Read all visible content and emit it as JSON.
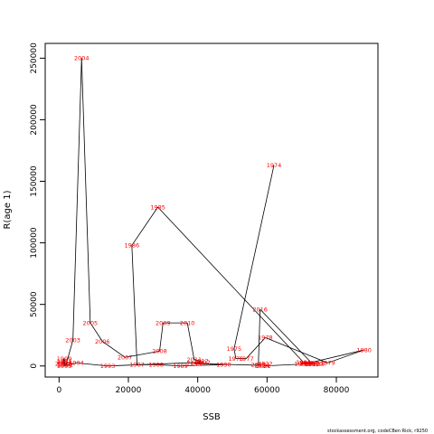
{
  "chart_data": {
    "type": "line",
    "xlabel": "SSB",
    "ylabel": "R(age 1)",
    "xlim": [
      -4000,
      92000
    ],
    "ylim": [
      -9000,
      262000
    ],
    "x_ticks": [
      0,
      20000,
      40000,
      60000,
      80000
    ],
    "y_ticks": [
      0,
      50000,
      100000,
      150000,
      200000,
      250000
    ],
    "points": [
      {
        "year": "1974",
        "x": 62000,
        "y": 163000
      },
      {
        "year": "1975",
        "x": 50500,
        "y": 14000
      },
      {
        "year": "1976",
        "x": 51000,
        "y": 6000
      },
      {
        "year": "1977",
        "x": 54000,
        "y": 6000
      },
      {
        "year": "1978",
        "x": 59500,
        "y": 23000
      },
      {
        "year": "1979",
        "x": 77500,
        "y": 2500
      },
      {
        "year": "1980",
        "x": 88000,
        "y": 13000
      },
      {
        "year": "1981",
        "x": 71500,
        "y": 2000
      },
      {
        "year": "1982",
        "x": 70000,
        "y": 2000
      },
      {
        "year": "1983",
        "x": 73000,
        "y": 1500
      },
      {
        "year": "1984",
        "x": 70500,
        "y": 3000
      },
      {
        "year": "1985",
        "x": 28500,
        "y": 129000
      },
      {
        "year": "1986",
        "x": 21000,
        "y": 98000
      },
      {
        "year": "1987",
        "x": 22500,
        "y": 1000
      },
      {
        "year": "1988",
        "x": 28000,
        "y": 1000
      },
      {
        "year": "1989",
        "x": 35000,
        "y": 0
      },
      {
        "year": "1990",
        "x": 47500,
        "y": 1000
      },
      {
        "year": "1991",
        "x": 40000,
        "y": 2000
      },
      {
        "year": "1992",
        "x": 41500,
        "y": 3000
      },
      {
        "year": "1993",
        "x": 14000,
        "y": 0
      },
      {
        "year": "1994",
        "x": 5000,
        "y": 2500
      },
      {
        "year": "1995",
        "x": 1500,
        "y": 0
      },
      {
        "year": "1996",
        "x": 1500,
        "y": 1000
      },
      {
        "year": "1997",
        "x": 1500,
        "y": 4000
      },
      {
        "year": "1998",
        "x": 1500,
        "y": 2000
      },
      {
        "year": "1999",
        "x": 1500,
        "y": 6000
      },
      {
        "year": "2000",
        "x": 1000,
        "y": 2000
      },
      {
        "year": "2001",
        "x": 1500,
        "y": 3000
      },
      {
        "year": "2002",
        "x": 2000,
        "y": 1000
      },
      {
        "year": "2003",
        "x": 4000,
        "y": 21000
      },
      {
        "year": "2004",
        "x": 6500,
        "y": 250000
      },
      {
        "year": "2005",
        "x": 9000,
        "y": 35000
      },
      {
        "year": "2006",
        "x": 12500,
        "y": 20000
      },
      {
        "year": "2007",
        "x": 19000,
        "y": 7000
      },
      {
        "year": "2008",
        "x": 29000,
        "y": 12000
      },
      {
        "year": "2009",
        "x": 30000,
        "y": 35000
      },
      {
        "year": "2010",
        "x": 37000,
        "y": 35000
      },
      {
        "year": "2011",
        "x": 39000,
        "y": 5000
      },
      {
        "year": "2012",
        "x": 41000,
        "y": 4000
      },
      {
        "year": "2013",
        "x": 39000,
        "y": 2000
      },
      {
        "year": "2014",
        "x": 58500,
        "y": 500
      },
      {
        "year": "2015",
        "x": 57500,
        "y": 1000
      },
      {
        "year": "2016",
        "x": 58000,
        "y": 46000
      },
      {
        "year": "2017",
        "x": 73000,
        "y": 2000
      },
      {
        "year": "2018",
        "x": 74500,
        "y": 2000
      },
      {
        "year": "2019",
        "x": 71500,
        "y": 2500
      },
      {
        "year": "2020",
        "x": 74000,
        "y": 2000
      },
      {
        "year": "2021",
        "x": 59000,
        "y": 0
      },
      {
        "year": "2022",
        "x": 59500,
        "y": 2000
      }
    ],
    "path_color": "#000000",
    "label_color": "#ff0000",
    "grid": false
  },
  "credit": "stockassessment.org, codeCBen Rick, r9250"
}
